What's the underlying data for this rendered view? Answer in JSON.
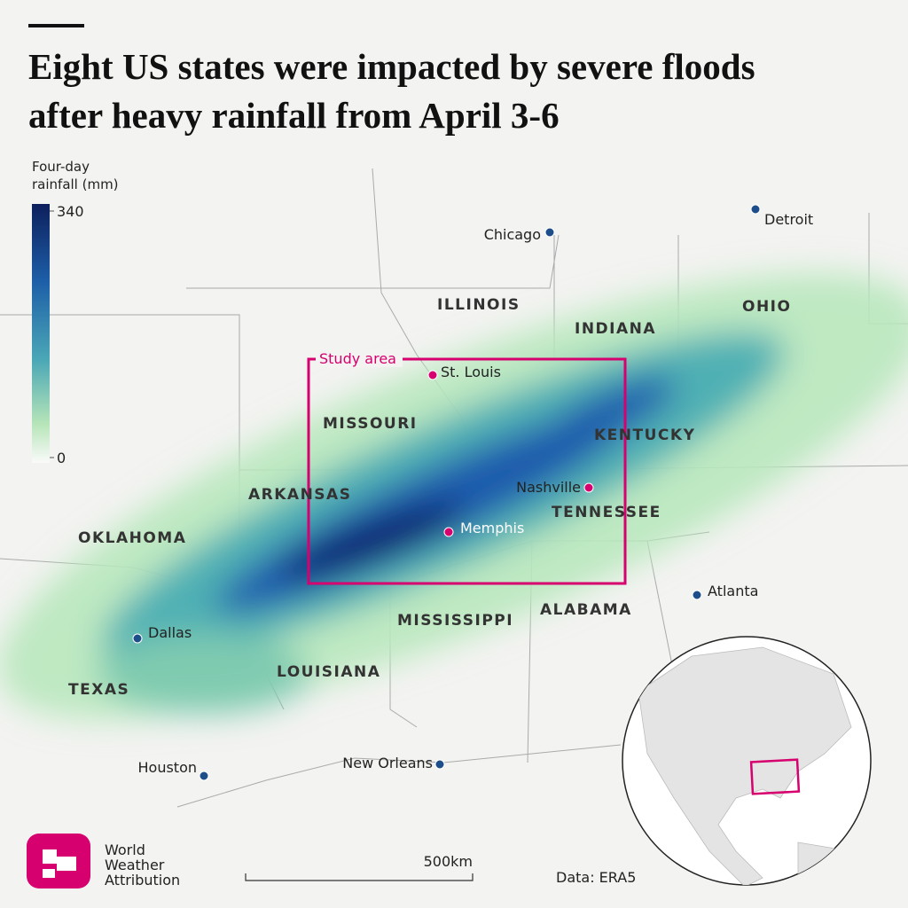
{
  "title": "Eight US states were impacted by severe floods after heavy rainfall from April 3-6",
  "legend": {
    "title": "Four-day rainfall (mm)",
    "ticks": [
      340,
      0
    ]
  },
  "states": [
    "ILLINOIS",
    "INDIANA",
    "OHIO",
    "MISSOURI",
    "KENTUCKY",
    "ARKANSAS",
    "TENNESSEE",
    "OKLAHOMA",
    "MISSISSIPPI",
    "ALABAMA",
    "LOUISIANA",
    "TEXAS"
  ],
  "cities": [
    "Chicago",
    "Detroit",
    "St. Louis",
    "Nashville",
    "Memphis",
    "Atlanta",
    "Dallas",
    "Houston",
    "New Orleans"
  ],
  "study_area": "Study area",
  "scale_bar": "500km",
  "source": "Data: ERA5",
  "logo": "World Weather Attribution"
}
